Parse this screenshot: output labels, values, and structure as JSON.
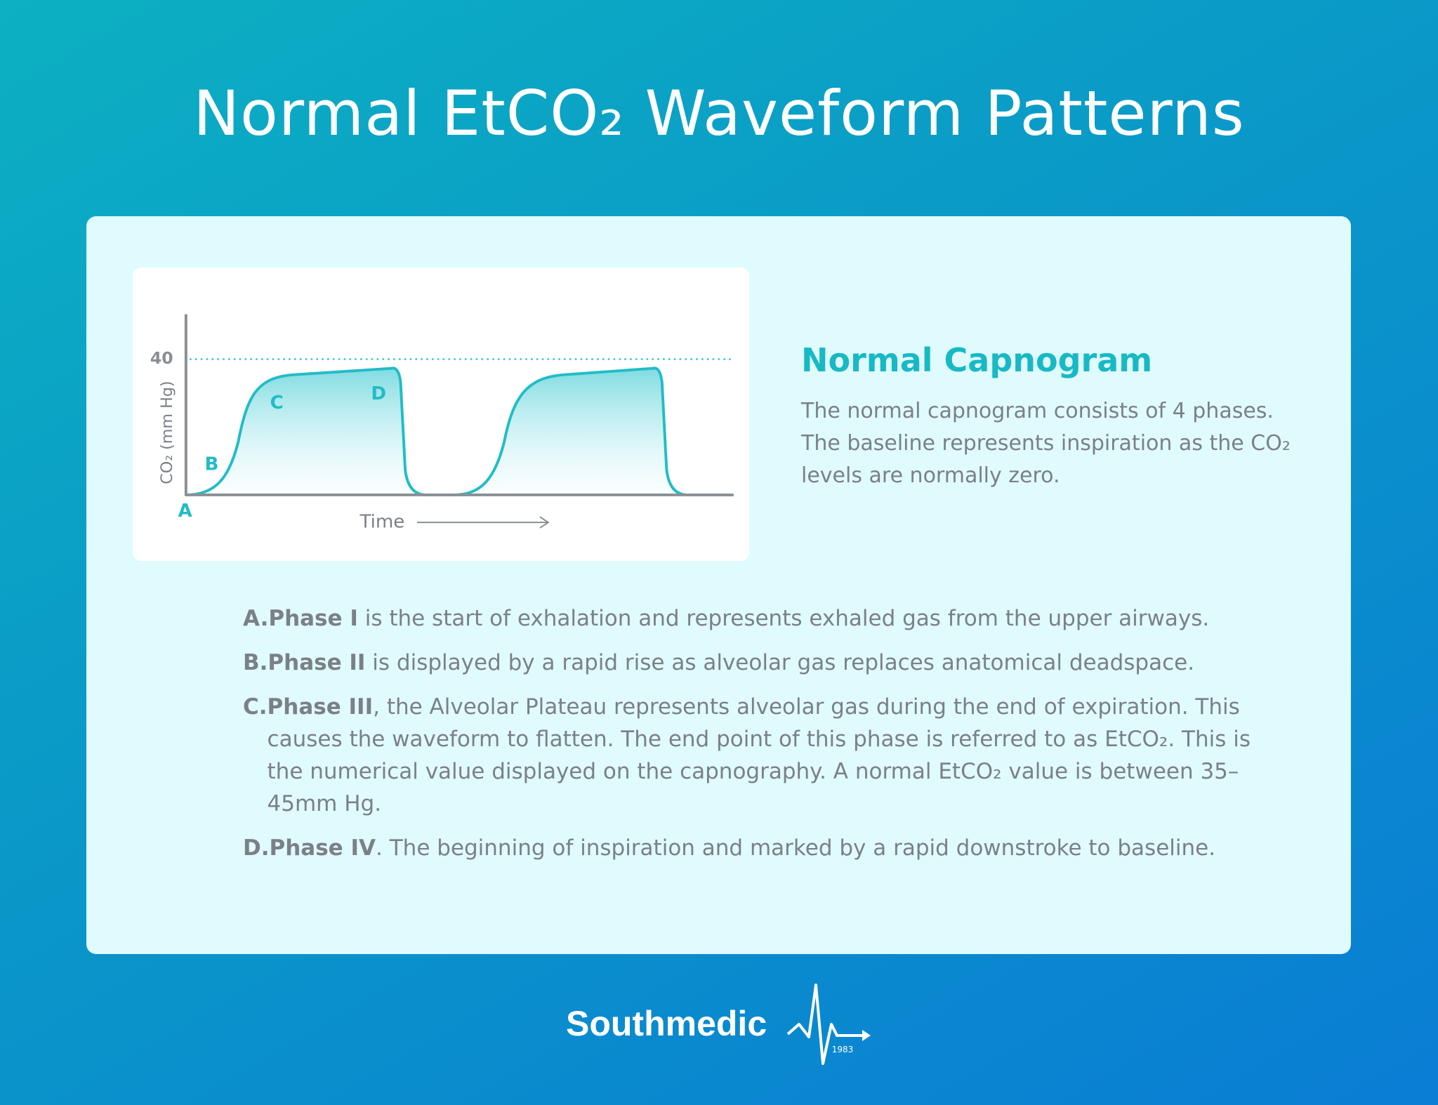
{
  "title": "Normal EtCO₂ Waveform Patterns",
  "capnogram": {
    "ylabel": "CO₂ (mm Hg)",
    "xlabel": "Time",
    "yticks": [
      40
    ],
    "phase_labels": [
      "A",
      "B",
      "C",
      "D"
    ]
  },
  "section": {
    "heading": "Normal Capnogram",
    "description": "The normal capnogram consists of 4 phases. The baseline represents inspiration as the CO₂ levels are normally zero."
  },
  "phases": [
    {
      "letter": "A.",
      "term": "Phase I",
      "text": " is the start of exhalation and represents exhaled gas from the upper airways."
    },
    {
      "letter": "B.",
      "term": "Phase II",
      "text": " is displayed by a rapid rise as alveolar gas replaces anatomical deadspace."
    },
    {
      "letter": "C.",
      "term": "Phase III",
      "text": ", the Alveolar Plateau represents alveolar gas during the end of expiration. This causes the waveform to flatten. The end point of this phase is referred to as EtCO₂. This is the numerical value displayed on the capnography. A normal EtCO₂ value is between 35–45mm Hg."
    },
    {
      "letter": "D.",
      "term": "Phase IV",
      "text": ". The beginning of inspiration and marked by a rapid downstroke to baseline."
    }
  ],
  "footer": {
    "brand": "Southmedic",
    "year": "1983"
  }
}
